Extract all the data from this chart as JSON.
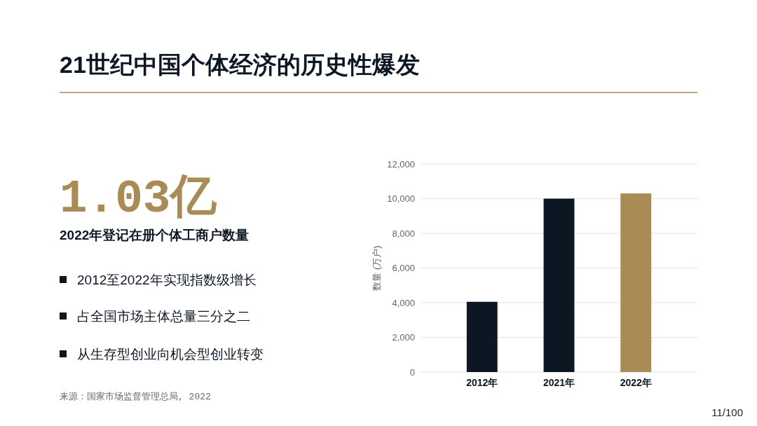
{
  "chart_data": {
    "type": "bar",
    "title": "21世纪中国个体经济的历史性爆发",
    "categories": [
      "2012年",
      "2021年",
      "2022年"
    ],
    "values": [
      4050,
      10000,
      10300
    ],
    "colors": [
      "#0d1724",
      "#0d1724",
      "#a88b55"
    ],
    "ylabel": "数量 (万户)",
    "ylim": [
      0,
      12000
    ],
    "yticks": [
      {
        "value": 0,
        "label": "0"
      },
      {
        "value": 2000,
        "label": "2,000"
      },
      {
        "value": 4000,
        "label": "4,000"
      },
      {
        "value": 6000,
        "label": "6,000"
      },
      {
        "value": 8000,
        "label": "8,000"
      },
      {
        "value": 10000,
        "label": "10,000"
      },
      {
        "value": 12000,
        "label": "12,000"
      }
    ],
    "grid": "y",
    "annotations": [
      "1.03亿",
      "2022年登记在册个体工商户数量",
      "2012至2022年实现指数级增长",
      "占全国市场主体总量三分之二",
      "从生存型创业向机会型创业转变",
      "来源：国家市场监督管理总局, 2022",
      "11/100"
    ]
  }
}
